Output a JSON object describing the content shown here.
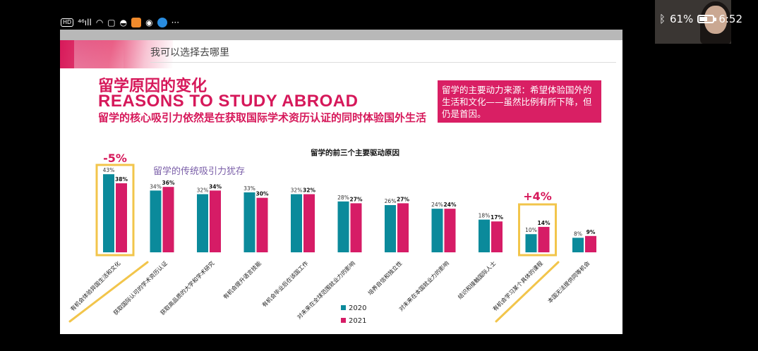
{
  "status_bar": {
    "hd": "HD",
    "signal": "⁴⁶ıll",
    "more": "···",
    "battery_pct": "61%",
    "battery_level": 0.61,
    "time": "6:52"
  },
  "slide": {
    "subheading": "我可以选择去哪里",
    "title_cn": "留学原因的变化",
    "title_en": "REASONS TO STUDY ABROAD",
    "subtitle": "留学的核心吸引力依然是在获取国际学术资历认证的同时体验国外生活",
    "note": "留学的主要动力来源：希望体验国外的生活和文化——虽然比例有所下降，但仍是首因。"
  },
  "chart_data": {
    "type": "bar",
    "title": "留学的前三个主要驱动原因",
    "categories": [
      "有机会体验异国生活和文化",
      "获取国际认可的学术资历认证",
      "获取高品质的大学和学术研究",
      "有机会提升语言技能",
      "有机会毕业后在该国工作",
      "对未来在全球范围就业力的影响",
      "培养自信和独立性",
      "对未来在本国就业力的影响",
      "结识和接触国际人士",
      "有机会学习某个具体的课程",
      "本国无法提供同等机会"
    ],
    "series": [
      {
        "name": "2020",
        "values": [
          43,
          34,
          32,
          33,
          32,
          28,
          26,
          24,
          18,
          10,
          8
        ],
        "labels": [
          "43%",
          "34%",
          "32%",
          "33%",
          "32%",
          "28%",
          "26%",
          "24%",
          "18%",
          "10%",
          "8%"
        ]
      },
      {
        "name": "2021",
        "values": [
          38,
          36,
          34,
          30,
          32,
          27,
          27,
          24,
          17,
          14,
          9
        ],
        "labels": [
          "38%",
          "36%",
          "34%",
          "30%",
          "32%",
          "27%",
          "27%",
          "24%",
          "17%",
          "14%",
          "9%"
        ]
      }
    ],
    "ylim": [
      0,
      45
    ],
    "legend_position": "bottom",
    "colors": {
      "2020": "#0b8a9b",
      "2021": "#d61c66",
      "highlight": "#f2c54b"
    },
    "annotations": {
      "left_change": "-5%",
      "left_note": "留学的传统吸引力犹存",
      "right_change": "+4%"
    }
  }
}
